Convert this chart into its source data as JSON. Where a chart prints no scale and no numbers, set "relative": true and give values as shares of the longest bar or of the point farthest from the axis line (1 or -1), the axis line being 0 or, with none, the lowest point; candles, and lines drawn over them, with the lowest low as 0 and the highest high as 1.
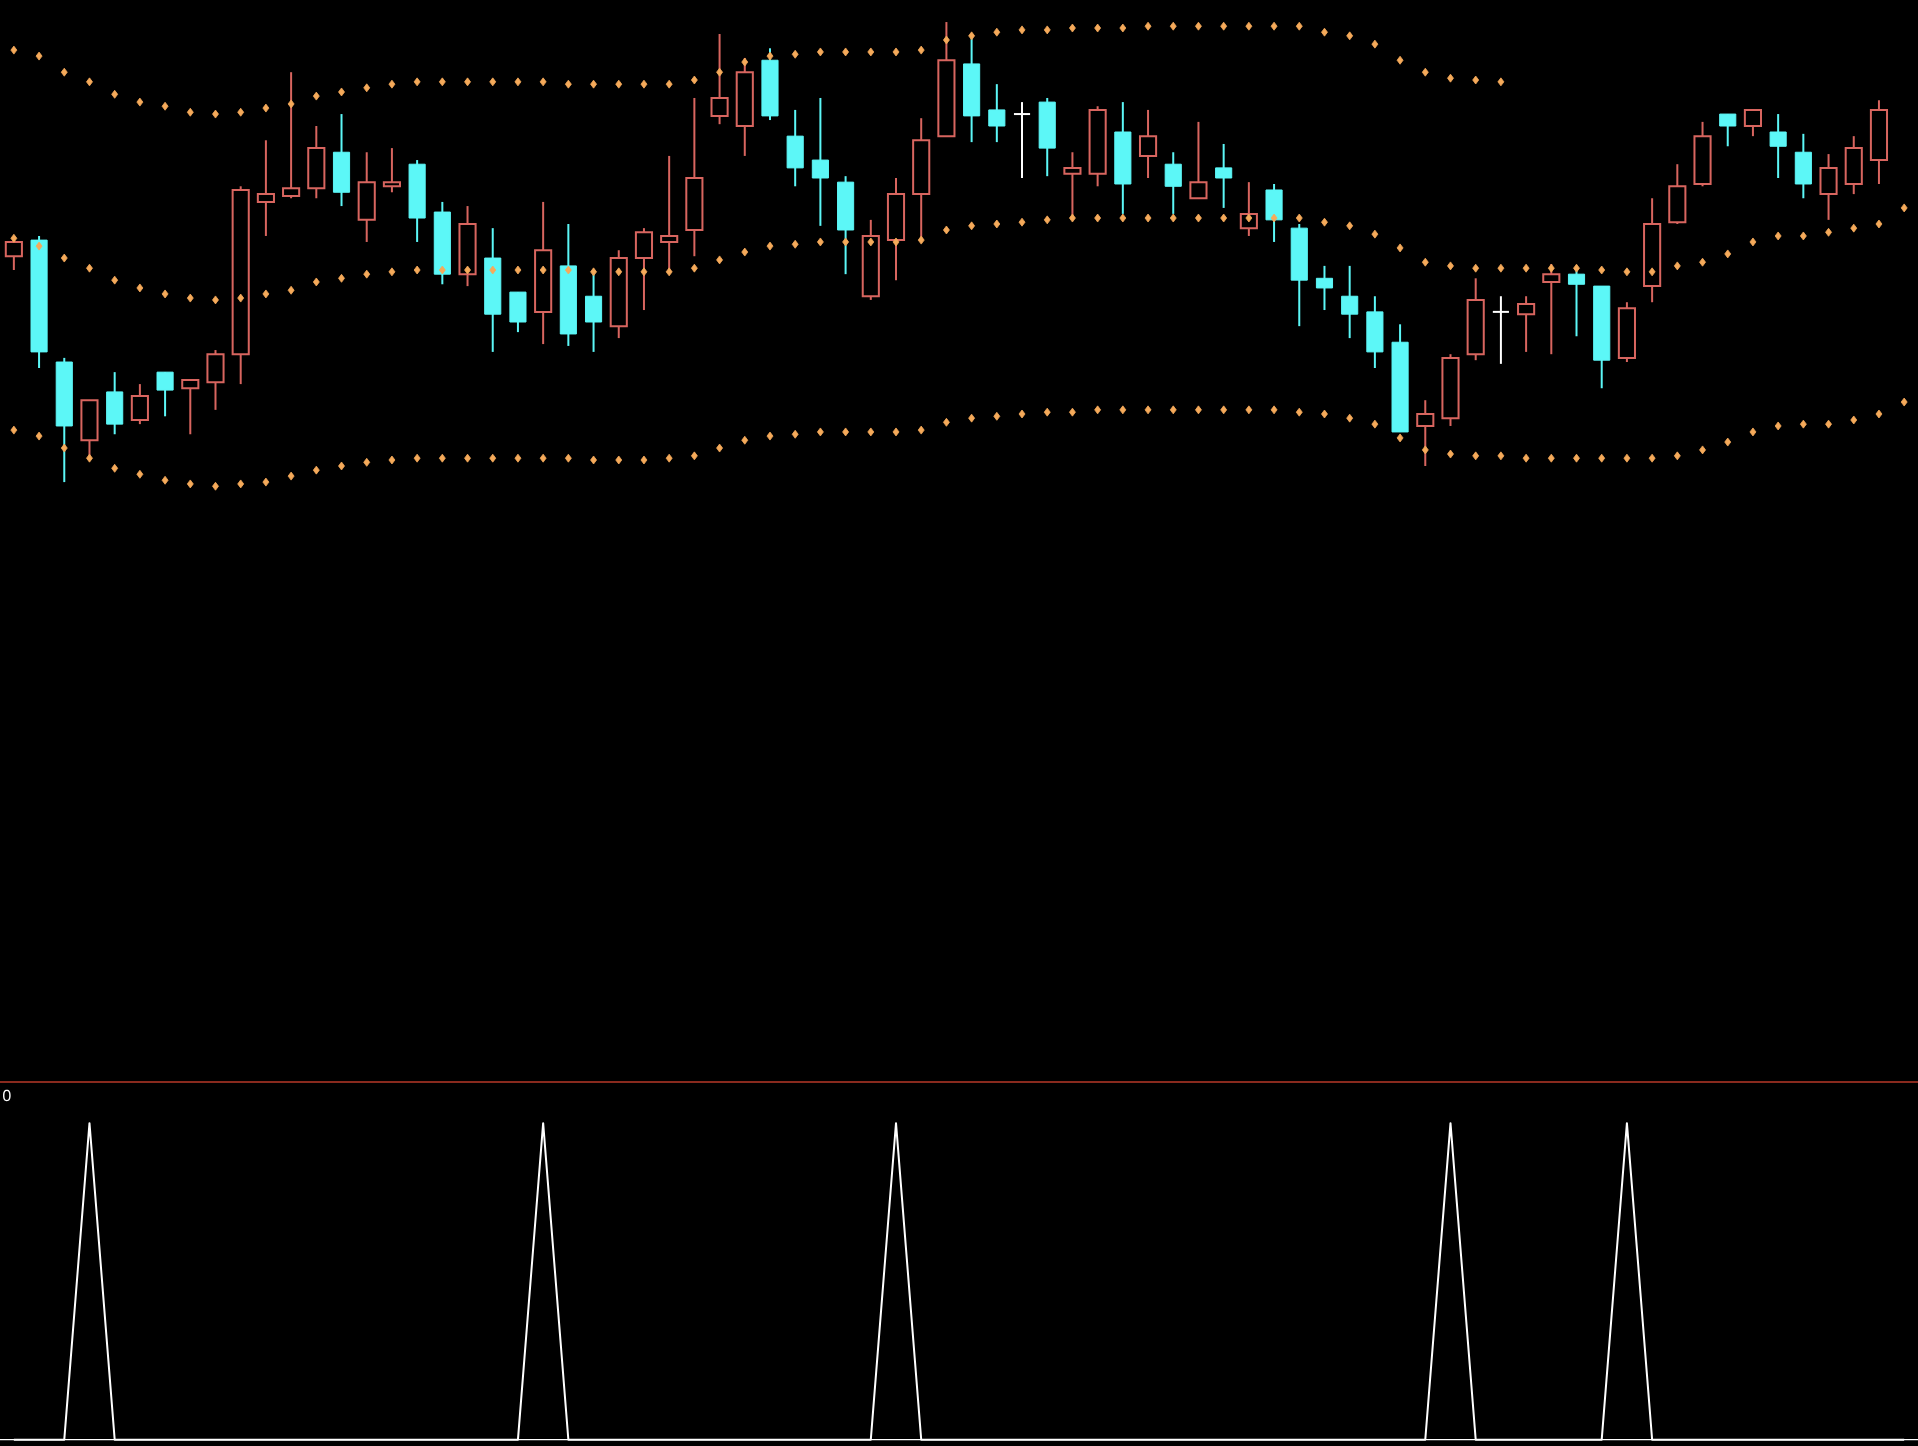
{
  "chart_data": [
    {
      "type": "candlestick",
      "relative": true,
      "marker": "diamond",
      "categories": [
        null,
        null,
        null,
        null,
        null,
        null,
        null,
        null,
        null,
        null,
        null,
        null,
        null,
        null,
        null,
        null,
        null,
        null,
        null,
        null,
        null,
        null,
        null,
        null,
        null,
        null,
        null,
        null,
        null,
        null,
        null,
        null,
        null,
        null,
        null,
        null,
        null,
        null,
        null,
        null,
        null,
        null,
        null,
        null,
        null,
        null,
        null,
        null,
        null,
        null,
        null,
        null,
        null,
        null,
        null,
        null,
        null,
        null,
        null,
        null,
        null,
        null,
        null,
        null,
        null,
        null,
        null,
        null,
        null,
        null,
        null,
        null,
        null,
        null,
        null,
        null
      ],
      "ohlc": [
        [
          0.491,
          0.535,
          0.461,
          0.522
        ],
        [
          0.526,
          0.535,
          0.248,
          0.283
        ],
        [
          0.261,
          0.27,
          0,
          0.122
        ],
        [
          0.091,
          0.178,
          0.052,
          0.178
        ],
        [
          0.196,
          0.239,
          0.104,
          0.126
        ],
        [
          0.135,
          0.213,
          0.126,
          0.187
        ],
        [
          0.239,
          0.239,
          0.143,
          0.2
        ],
        [
          0.204,
          0.222,
          0.104,
          0.222
        ],
        [
          0.217,
          0.287,
          0.157,
          0.278
        ],
        [
          0.278,
          0.643,
          0.213,
          0.635
        ],
        [
          0.609,
          0.743,
          0.535,
          0.626
        ],
        [
          0.622,
          0.891,
          0.617,
          0.639
        ],
        [
          0.639,
          0.774,
          0.617,
          0.726
        ],
        [
          0.717,
          0.8,
          0.6,
          0.63
        ],
        [
          0.57,
          0.717,
          0.522,
          0.652
        ],
        [
          0.643,
          0.726,
          0.63,
          0.652
        ],
        [
          0.691,
          0.7,
          0.522,
          0.574
        ],
        [
          0.587,
          0.609,
          0.43,
          0.452
        ],
        [
          0.452,
          0.6,
          0.426,
          0.561
        ],
        [
          0.487,
          0.552,
          0.283,
          0.365
        ],
        [
          0.413,
          0.413,
          0.326,
          0.348
        ],
        [
          0.37,
          0.609,
          0.3,
          0.504
        ],
        [
          0.47,
          0.561,
          0.296,
          0.322
        ],
        [
          0.404,
          0.452,
          0.283,
          0.348
        ],
        [
          0.339,
          0.504,
          0.313,
          0.487
        ],
        [
          0.487,
          0.552,
          0.374,
          0.543
        ],
        [
          0.522,
          0.709,
          0.461,
          0.535
        ],
        [
          0.548,
          0.835,
          0.491,
          0.661
        ],
        [
          0.796,
          0.974,
          0.778,
          0.835
        ],
        [
          0.774,
          0.922,
          0.709,
          0.891
        ],
        [
          0.917,
          0.943,
          0.787,
          0.796
        ],
        [
          0.752,
          0.809,
          0.643,
          0.683
        ],
        [
          0.7,
          0.835,
          0.557,
          0.661
        ],
        [
          0.652,
          0.665,
          0.452,
          0.548
        ],
        [
          0.404,
          0.57,
          0.396,
          0.535
        ],
        [
          0.526,
          0.661,
          0.439,
          0.626
        ],
        [
          0.626,
          0.791,
          0.526,
          0.743
        ],
        [
          0.752,
          1,
          0.752,
          0.917
        ],
        [
          0.909,
          0.97,
          0.739,
          0.796
        ],
        [
          0.809,
          0.865,
          0.739,
          0.774
        ],
        [
          0.8,
          0.826,
          0.661,
          0.8
        ],
        [
          0.826,
          0.835,
          0.665,
          0.726
        ],
        [
          0.67,
          0.717,
          0.578,
          0.683
        ],
        [
          0.67,
          0.817,
          0.643,
          0.809
        ],
        [
          0.761,
          0.826,
          0.583,
          0.648
        ],
        [
          0.709,
          0.809,
          0.661,
          0.752
        ],
        [
          0.691,
          0.717,
          0.583,
          0.643
        ],
        [
          0.617,
          0.783,
          0.617,
          0.652
        ],
        [
          0.683,
          0.735,
          0.596,
          0.661
        ],
        [
          0.552,
          0.652,
          0.535,
          0.583
        ],
        [
          0.635,
          0.648,
          0.522,
          0.57
        ],
        [
          0.552,
          0.561,
          0.339,
          0.439
        ],
        [
          0.443,
          0.47,
          0.374,
          0.422
        ],
        [
          0.404,
          0.47,
          0.313,
          0.365
        ],
        [
          0.37,
          0.404,
          0.248,
          0.283
        ],
        [
          0.304,
          0.343,
          0.109,
          0.109
        ],
        [
          0.122,
          0.178,
          0.035,
          0.148
        ],
        [
          0.139,
          0.278,
          0.122,
          0.27
        ],
        [
          0.278,
          0.443,
          0.265,
          0.396
        ],
        [
          0.37,
          0.404,
          0.257,
          0.37
        ],
        [
          0.365,
          0.404,
          0.283,
          0.387
        ],
        [
          0.435,
          0.474,
          0.278,
          0.452
        ],
        [
          0.452,
          0.47,
          0.317,
          0.43
        ],
        [
          0.426,
          0.426,
          0.204,
          0.265
        ],
        [
          0.27,
          0.391,
          0.261,
          0.378
        ],
        [
          0.426,
          0.617,
          0.391,
          0.561
        ],
        [
          0.565,
          0.691,
          0.561,
          0.643
        ],
        [
          0.648,
          0.783,
          0.643,
          0.752
        ],
        [
          0.8,
          0.8,
          0.73,
          0.774
        ],
        [
          0.774,
          0.809,
          0.752,
          0.809
        ],
        [
          0.761,
          0.8,
          0.661,
          0.73
        ],
        [
          0.717,
          0.757,
          0.617,
          0.648
        ],
        [
          0.626,
          0.713,
          0.57,
          0.683
        ],
        [
          0.648,
          0.752,
          0.626,
          0.726
        ],
        [
          0.7,
          0.83,
          0.648,
          0.809
        ],
        null
      ],
      "colors": [
        "#d8655f",
        "#5cf7f7",
        "#5cf7f7",
        "#d8655f",
        "#5cf7f7",
        "#d8655f",
        "#5cf7f7",
        "#d8655f",
        "#d8655f",
        "#d8655f",
        "#d8655f",
        "#d8655f",
        "#d8655f",
        "#5cf7f7",
        "#d8655f",
        "#d8655f",
        "#5cf7f7",
        "#5cf7f7",
        "#d8655f",
        "#5cf7f7",
        "#5cf7f7",
        "#d8655f",
        "#5cf7f7",
        "#5cf7f7",
        "#d8655f",
        "#d8655f",
        "#d8655f",
        "#d8655f",
        "#d8655f",
        "#d8655f",
        "#5cf7f7",
        "#5cf7f7",
        "#5cf7f7",
        "#5cf7f7",
        "#d8655f",
        "#d8655f",
        "#d8655f",
        "#d8655f",
        "#5cf7f7",
        "#5cf7f7",
        "#ffffff",
        "#5cf7f7",
        "#d8655f",
        "#d8655f",
        "#5cf7f7",
        "#d8655f",
        "#5cf7f7",
        "#d8655f",
        "#5cf7f7",
        "#d8655f",
        "#5cf7f7",
        "#5cf7f7",
        "#5cf7f7",
        "#5cf7f7",
        "#5cf7f7",
        "#5cf7f7",
        "#d8655f",
        "#d8655f",
        "#d8655f",
        "#ffffff",
        "#d8655f",
        "#d8655f",
        "#5cf7f7",
        "#5cf7f7",
        "#d8655f",
        "#d8655f",
        "#d8655f",
        "#d8655f",
        "#5cf7f7",
        "#d8655f",
        "#5cf7f7",
        "#5cf7f7",
        "#d8655f",
        "#d8655f",
        "#d8655f",
        null
      ],
      "series": [
        {
          "type": "scatter",
          "color": "#f5aa5a",
          "values": [
            0.939,
            0.926,
            0.891,
            0.87,
            0.843,
            0.826,
            0.817,
            0.804,
            0.8,
            0.804,
            0.813,
            0.822,
            0.839,
            0.848,
            0.857,
            0.865,
            0.87,
            0.87,
            0.87,
            0.87,
            0.87,
            0.87,
            0.865,
            0.865,
            0.865,
            0.865,
            0.865,
            0.874,
            0.891,
            0.913,
            0.926,
            0.93,
            0.935,
            0.935,
            0.935,
            0.935,
            0.939,
            0.961,
            0.97,
            0.978,
            0.983,
            0.983,
            0.987,
            0.987,
            0.987,
            0.991,
            0.991,
            0.991,
            0.991,
            0.991,
            0.991,
            0.991,
            0.978,
            0.97,
            0.952,
            0.917,
            0.891,
            0.878,
            0.874,
            0.87,
            null,
            null,
            null,
            null,
            null,
            null,
            null,
            null,
            null,
            null,
            null,
            null,
            null,
            null,
            null,
            null
          ]
        },
        {
          "type": "scatter",
          "color": "#f5aa5a",
          "values": [
            0.53,
            0.513,
            0.487,
            0.465,
            0.439,
            0.422,
            0.409,
            0.4,
            0.396,
            0.4,
            0.409,
            0.417,
            0.435,
            0.443,
            0.452,
            0.457,
            0.461,
            0.461,
            0.461,
            0.461,
            0.461,
            0.461,
            0.461,
            0.457,
            0.457,
            0.457,
            0.457,
            0.465,
            0.483,
            0.5,
            0.513,
            0.517,
            0.522,
            0.522,
            0.522,
            0.522,
            0.526,
            0.548,
            0.557,
            0.561,
            0.565,
            0.57,
            0.574,
            0.574,
            0.574,
            0.574,
            0.574,
            0.574,
            0.574,
            0.574,
            0.574,
            0.574,
            0.565,
            0.557,
            0.539,
            0.509,
            0.478,
            0.47,
            0.465,
            0.465,
            0.465,
            0.465,
            0.465,
            0.461,
            0.457,
            0.457,
            0.47,
            0.478,
            0.496,
            0.522,
            0.535,
            0.535,
            0.543,
            0.552,
            0.561,
            0.596
          ]
        },
        {
          "type": "scatter",
          "color": "#f5aa5a",
          "values": [
            0.113,
            0.1,
            0.074,
            0.052,
            0.03,
            0.017,
            0.004,
            -0.004,
            -0.009,
            -0.004,
            0,
            0.013,
            0.026,
            0.035,
            0.043,
            0.048,
            0.052,
            0.052,
            0.052,
            0.052,
            0.052,
            0.052,
            0.052,
            0.048,
            0.048,
            0.048,
            0.052,
            0.057,
            0.074,
            0.091,
            0.1,
            0.104,
            0.109,
            0.109,
            0.109,
            0.109,
            0.113,
            0.13,
            0.139,
            0.143,
            0.148,
            0.152,
            0.152,
            0.157,
            0.157,
            0.157,
            0.157,
            0.157,
            0.157,
            0.157,
            0.157,
            0.152,
            0.148,
            0.139,
            0.126,
            0.096,
            0.07,
            0.061,
            0.057,
            0.057,
            0.052,
            0.052,
            0.052,
            0.052,
            0.052,
            0.052,
            0.057,
            0.07,
            0.087,
            0.109,
            0.122,
            0.126,
            0.126,
            0.135,
            0.148,
            0.174
          ]
        }
      ]
    },
    {
      "type": "line",
      "relative": true,
      "color": "#ffffff",
      "annotations": [
        "0"
      ],
      "categories": [
        null,
        null,
        null,
        null,
        null,
        null,
        null,
        null,
        null,
        null,
        null,
        null,
        null,
        null,
        null,
        null,
        null,
        null,
        null,
        null,
        null,
        null,
        null,
        null,
        null,
        null,
        null,
        null,
        null,
        null,
        null,
        null,
        null,
        null,
        null,
        null,
        null,
        null,
        null,
        null,
        null,
        null,
        null,
        null,
        null,
        null,
        null,
        null,
        null,
        null,
        null,
        null,
        null,
        null,
        null,
        null,
        null,
        null,
        null,
        null,
        null,
        null,
        null,
        null,
        null,
        null,
        null,
        null,
        null,
        null,
        null,
        null,
        null,
        null,
        null,
        null
      ],
      "values": [
        0,
        0,
        0,
        1,
        0,
        0,
        0,
        0,
        0,
        0,
        0,
        0,
        0,
        0,
        0,
        0,
        0,
        0,
        0,
        0,
        0,
        1,
        0,
        0,
        0,
        0,
        0,
        0,
        0,
        0,
        0,
        0,
        0,
        0,
        0,
        1,
        0,
        0,
        0,
        0,
        0,
        0,
        0,
        0,
        0,
        0,
        0,
        0,
        0,
        0,
        0,
        0,
        0,
        0,
        0,
        0,
        0,
        1,
        0,
        0,
        0,
        0,
        0,
        0,
        1,
        0,
        0,
        0,
        0,
        0,
        0,
        0,
        0,
        0,
        0,
        0
      ]
    }
  ]
}
